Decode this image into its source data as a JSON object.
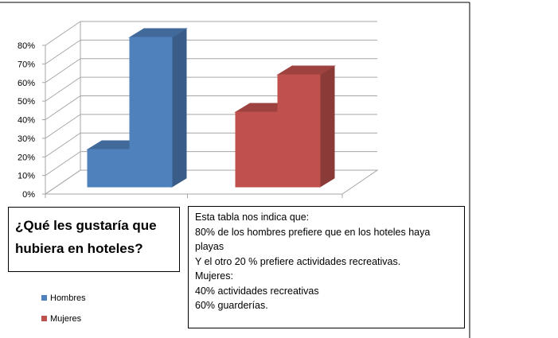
{
  "chart_data": {
    "type": "bar",
    "categories": [
      "",
      ""
    ],
    "series": [
      {
        "name": "Hombres",
        "values": [
          20,
          80
        ],
        "color": "#4F81BD"
      },
      {
        "name": "Mujeres",
        "values": [
          40,
          60
        ],
        "color": "#C0504D"
      }
    ],
    "y_ticks": [
      "0%",
      "10%",
      "20%",
      "30%",
      "40%",
      "50%",
      "60%",
      "70%",
      "80%"
    ],
    "ylim": [
      0,
      80
    ],
    "grid": true,
    "legend_position": "bottom-left"
  },
  "question": "¿Qué les gustaría que hubiera en hoteles?",
  "note_lines": [
    "Esta tabla nos indica que:",
    "80% de los hombres prefiere que en los hoteles haya playas",
    "Y el otro 20 % prefiere actividades recreativas.",
    "Mujeres:",
    "40% actividades recreativas",
    "60% guarderías."
  ]
}
